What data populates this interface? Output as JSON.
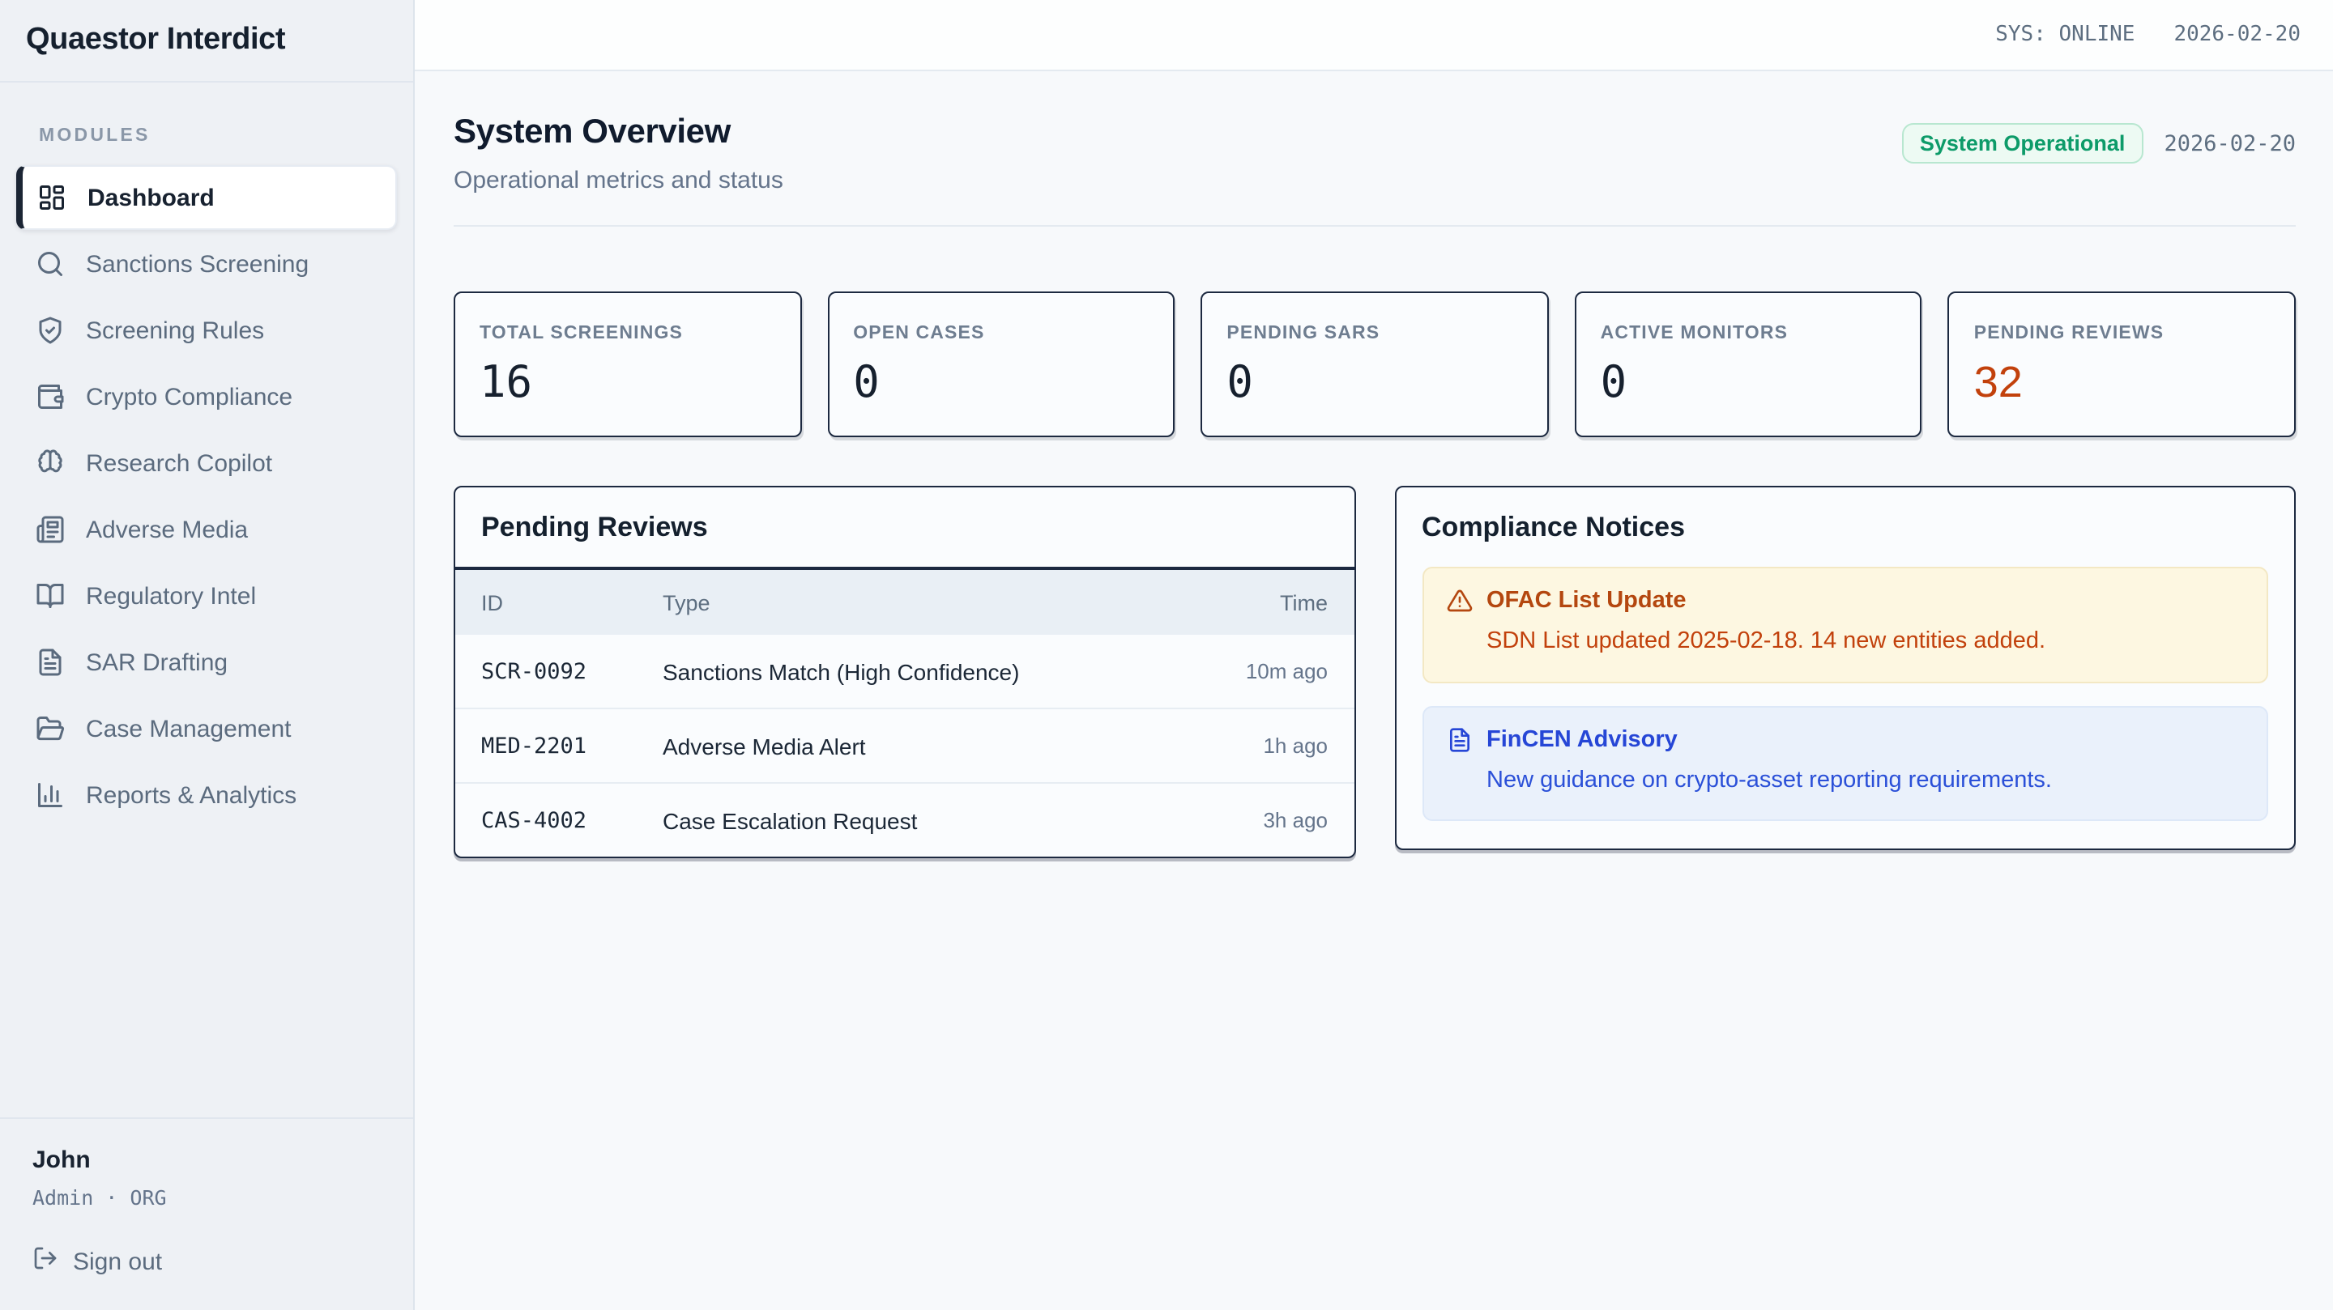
{
  "app": {
    "title": "Quaestor Interdict"
  },
  "topbar": {
    "status": "SYS: ONLINE",
    "date": "2026-02-20"
  },
  "sidebar": {
    "section_label": "MODULES",
    "items": [
      {
        "label": "Dashboard",
        "icon": "layout-dashboard",
        "active": true
      },
      {
        "label": "Sanctions Screening",
        "icon": "search",
        "active": false
      },
      {
        "label": "Screening Rules",
        "icon": "shield-check",
        "active": false
      },
      {
        "label": "Crypto Compliance",
        "icon": "wallet",
        "active": false
      },
      {
        "label": "Research Copilot",
        "icon": "brain",
        "active": false
      },
      {
        "label": "Adverse Media",
        "icon": "newspaper",
        "active": false
      },
      {
        "label": "Regulatory Intel",
        "icon": "book-open",
        "active": false
      },
      {
        "label": "SAR Drafting",
        "icon": "file-text",
        "active": false
      },
      {
        "label": "Case Management",
        "icon": "folder-open",
        "active": false
      },
      {
        "label": "Reports & Analytics",
        "icon": "bar-chart",
        "active": false
      }
    ],
    "footer": {
      "name": "John",
      "role": "Admin · ORG",
      "signout_label": "Sign out"
    }
  },
  "overview": {
    "title": "System Overview",
    "subtitle": "Operational metrics and status",
    "status_badge": "System Operational",
    "date": "2026-02-20"
  },
  "metrics": [
    {
      "label": "TOTAL SCREENINGS",
      "value": "16",
      "accent": false
    },
    {
      "label": "OPEN CASES",
      "value": "0",
      "accent": false
    },
    {
      "label": "PENDING SARS",
      "value": "0",
      "accent": false
    },
    {
      "label": "ACTIVE MONITORS",
      "value": "0",
      "accent": false
    },
    {
      "label": "PENDING REVIEWS",
      "value": "32",
      "accent": true
    }
  ],
  "pending_reviews": {
    "title": "Pending Reviews",
    "columns": {
      "id": "ID",
      "type": "Type",
      "time": "Time"
    },
    "rows": [
      {
        "id": "SCR-0092",
        "type": "Sanctions Match (High Confidence)",
        "time": "10m ago"
      },
      {
        "id": "MED-2201",
        "type": "Adverse Media Alert",
        "time": "1h ago"
      },
      {
        "id": "CAS-4002",
        "type": "Case Escalation Request",
        "time": "3h ago"
      }
    ]
  },
  "notices": {
    "title": "Compliance Notices",
    "items": [
      {
        "kind": "warning",
        "icon": "alert-triangle",
        "title": "OFAC List Update",
        "body": "SDN List updated 2025-02-18. 14 new entities added."
      },
      {
        "kind": "info",
        "icon": "file-text",
        "title": "FinCEN Advisory",
        "body": "New guidance on crypto-asset reporting requirements."
      }
    ]
  },
  "colors": {
    "accent_green": "#0d9b69",
    "alert_orange": "#c2410c",
    "advisory_blue": "#2646d6",
    "panel_border": "#1c2940"
  }
}
